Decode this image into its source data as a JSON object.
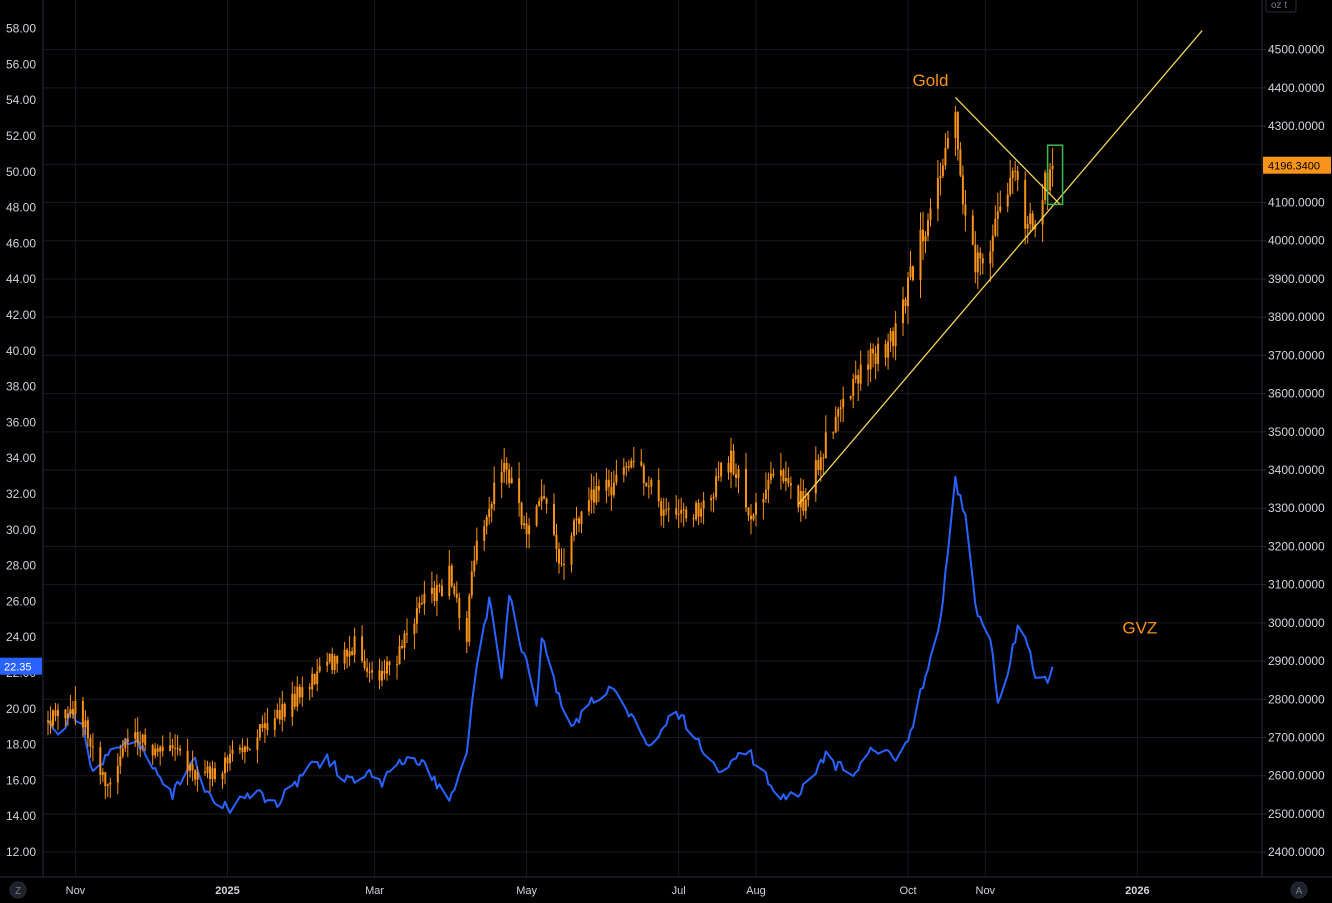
{
  "chart_data": {
    "type": "candlestick+line",
    "x_range": [
      "2024-10-19",
      "2026-02-20"
    ],
    "x_ticks": [
      {
        "date": "2024-11-01",
        "label": "Nov",
        "bold": false
      },
      {
        "date": "2025-01-01",
        "label": "2025",
        "bold": true
      },
      {
        "date": "2025-03-01",
        "label": "Mar",
        "bold": false
      },
      {
        "date": "2025-05-01",
        "label": "May",
        "bold": false
      },
      {
        "date": "2025-07-01",
        "label": "Jul",
        "bold": false
      },
      {
        "date": "2025-08-01",
        "label": "Aug",
        "bold": false
      },
      {
        "date": "2025-10-01",
        "label": "Oct",
        "bold": false
      },
      {
        "date": "2025-11-01",
        "label": "Nov",
        "bold": false
      },
      {
        "date": "2026-01-01",
        "label": "2026",
        "bold": true
      }
    ],
    "left_axis": {
      "ticks": [
        "12.00",
        "14.00",
        "16.00",
        "18.00",
        "20.00",
        "22.00",
        "24.00",
        "26.00",
        "28.00",
        "30.00",
        "32.00",
        "34.00",
        "36.00",
        "38.00",
        "40.00",
        "42.00",
        "44.00",
        "46.00",
        "48.00",
        "50.00",
        "52.00",
        "54.00",
        "56.00",
        "58.00"
      ],
      "range": [
        10.6,
        59.6
      ],
      "current": "22.35"
    },
    "right_axis": {
      "unit_label": "oz t",
      "ticks": [
        "2400.0000",
        "2500.0000",
        "2600.0000",
        "2700.0000",
        "2800.0000",
        "2900.0000",
        "3000.0000",
        "3100.0000",
        "3200.0000",
        "3300.0000",
        "3400.0000",
        "3500.0000",
        "3600.0000",
        "3700.0000",
        "3800.0000",
        "3900.0000",
        "4000.0000",
        "4100.0000",
        "4200.0000",
        "4300.0000",
        "4400.0000",
        "4500.0000"
      ],
      "range": [
        2335,
        4630
      ],
      "current": "4196.3400"
    },
    "series": [
      {
        "name": "Gold",
        "axis": "right",
        "style": "candlestick",
        "color": "#f7931a",
        "anchors": [
          [
            "2024-10-21",
            2740
          ],
          [
            "2024-10-30",
            2785
          ],
          [
            "2024-11-05",
            2740
          ],
          [
            "2024-11-14",
            2565
          ],
          [
            "2024-11-25",
            2715
          ],
          [
            "2024-12-02",
            2640
          ],
          [
            "2024-12-12",
            2690
          ],
          [
            "2024-12-19",
            2595
          ],
          [
            "2024-12-31",
            2625
          ],
          [
            "2025-01-10",
            2690
          ],
          [
            "2025-01-24",
            2770
          ],
          [
            "2025-02-11",
            2900
          ],
          [
            "2025-02-21",
            2940
          ],
          [
            "2025-02-28",
            2850
          ],
          [
            "2025-03-10",
            2910
          ],
          [
            "2025-03-20",
            3040
          ],
          [
            "2025-03-31",
            3120
          ],
          [
            "2025-04-07",
            2980
          ],
          [
            "2025-04-11",
            3230
          ],
          [
            "2025-04-22",
            3420
          ],
          [
            "2025-05-01",
            3240
          ],
          [
            "2025-05-09",
            3340
          ],
          [
            "2025-05-15",
            3150
          ],
          [
            "2025-05-23",
            3300
          ],
          [
            "2025-06-05",
            3370
          ],
          [
            "2025-06-13",
            3430
          ],
          [
            "2025-06-24",
            3300
          ],
          [
            "2025-07-09",
            3290
          ],
          [
            "2025-07-22",
            3430
          ],
          [
            "2025-07-30",
            3280
          ],
          [
            "2025-08-07",
            3390
          ],
          [
            "2025-08-20",
            3320
          ],
          [
            "2025-09-02",
            3530
          ],
          [
            "2025-09-16",
            3690
          ],
          [
            "2025-09-25",
            3740
          ],
          [
            "2025-10-08",
            4040
          ],
          [
            "2025-10-20",
            4350
          ],
          [
            "2025-10-23",
            4120
          ],
          [
            "2025-10-28",
            3950
          ],
          [
            "2025-11-03",
            4000
          ],
          [
            "2025-11-12",
            4200
          ],
          [
            "2025-11-18",
            4020
          ],
          [
            "2025-11-24",
            4130
          ],
          [
            "2025-11-28",
            4196
          ]
        ]
      },
      {
        "name": "GVZ",
        "axis": "left",
        "style": "line",
        "color": "#2962ff",
        "anchors": [
          [
            "2024-10-21",
            19.2
          ],
          [
            "2024-10-25",
            18.3
          ],
          [
            "2024-10-30",
            19.8
          ],
          [
            "2024-11-04",
            18.8
          ],
          [
            "2024-11-08",
            16.3
          ],
          [
            "2024-11-15",
            17.6
          ],
          [
            "2024-11-25",
            18.4
          ],
          [
            "2024-12-03",
            16.5
          ],
          [
            "2024-12-10",
            15.2
          ],
          [
            "2024-12-19",
            17.0
          ],
          [
            "2024-12-24",
            15.2
          ],
          [
            "2025-01-02",
            14.5
          ],
          [
            "2025-01-10",
            15.3
          ],
          [
            "2025-01-21",
            14.8
          ],
          [
            "2025-02-03",
            16.7
          ],
          [
            "2025-02-10",
            17.3
          ],
          [
            "2025-02-17",
            16.0
          ],
          [
            "2025-02-27",
            16.5
          ],
          [
            "2025-03-04",
            15.9
          ],
          [
            "2025-03-11",
            17.2
          ],
          [
            "2025-03-20",
            16.9
          ],
          [
            "2025-03-31",
            14.9
          ],
          [
            "2025-04-07",
            17.5
          ],
          [
            "2025-04-10",
            21.5
          ],
          [
            "2025-04-16",
            26.0
          ],
          [
            "2025-04-21",
            22.0
          ],
          [
            "2025-04-24",
            26.5
          ],
          [
            "2025-04-29",
            23.5
          ],
          [
            "2025-05-05",
            20.5
          ],
          [
            "2025-05-07",
            24.0
          ],
          [
            "2025-05-13",
            21.0
          ],
          [
            "2025-05-20",
            19.0
          ],
          [
            "2025-05-26",
            20.5
          ],
          [
            "2025-06-05",
            21.3
          ],
          [
            "2025-06-12",
            19.6
          ],
          [
            "2025-06-19",
            18.0
          ],
          [
            "2025-06-30",
            19.8
          ],
          [
            "2025-07-08",
            18.5
          ],
          [
            "2025-07-17",
            16.5
          ],
          [
            "2025-07-28",
            17.7
          ],
          [
            "2025-08-04",
            16.5
          ],
          [
            "2025-08-11",
            15.0
          ],
          [
            "2025-08-19",
            15.4
          ],
          [
            "2025-08-29",
            17.3
          ],
          [
            "2025-09-03",
            16.8
          ],
          [
            "2025-09-10",
            16.2
          ],
          [
            "2025-09-17",
            17.8
          ],
          [
            "2025-09-25",
            17.2
          ],
          [
            "2025-10-01",
            18.0
          ],
          [
            "2025-10-08",
            22.0
          ],
          [
            "2025-10-14",
            24.9
          ],
          [
            "2025-10-20",
            32.7
          ],
          [
            "2025-10-24",
            30.6
          ],
          [
            "2025-10-29",
            25.0
          ],
          [
            "2025-11-03",
            24.0
          ],
          [
            "2025-11-06",
            20.5
          ],
          [
            "2025-11-11",
            22.5
          ],
          [
            "2025-11-14",
            24.8
          ],
          [
            "2025-11-17",
            23.8
          ],
          [
            "2025-11-21",
            22.0
          ],
          [
            "2025-11-25",
            21.5
          ],
          [
            "2025-11-28",
            22.35
          ]
        ]
      }
    ],
    "annotations": [
      {
        "type": "trendline",
        "color": "#f2d35b",
        "from": [
          "2025-08-18",
          3310
        ],
        "to": [
          "2026-01-27",
          4550
        ]
      },
      {
        "type": "trendline",
        "color": "#f2d35b",
        "from": [
          "2025-10-20",
          4375
        ],
        "to": [
          "2025-12-01",
          4095
        ]
      },
      {
        "type": "rectangle",
        "color": "#3fb950",
        "from": [
          "2025-11-26",
          4095
        ],
        "to": [
          "2025-12-02",
          4250
        ]
      }
    ],
    "labels": [
      {
        "text": "Gold",
        "at": [
          "2025-10-10",
          4405
        ]
      },
      {
        "text": "GVZ",
        "at": [
          "2026-01-02",
          24.2
        ]
      }
    ],
    "grid": true
  },
  "toolbar": {
    "log_button": "Z",
    "auto_button": "A"
  }
}
